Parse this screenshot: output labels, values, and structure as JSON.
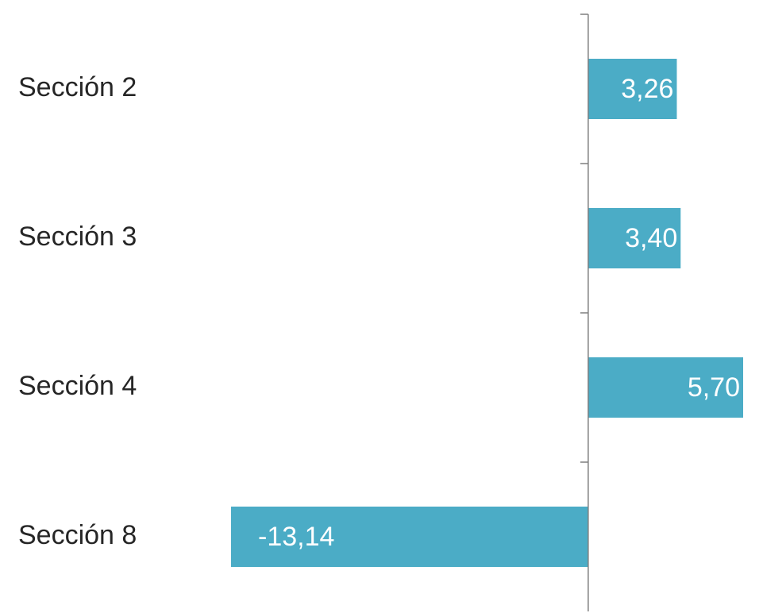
{
  "chart_data": {
    "type": "bar",
    "orientation": "horizontal",
    "categories": [
      "Sección 2",
      "Sección 3",
      "Sección 4",
      "Sección 8"
    ],
    "values": [
      3.26,
      3.4,
      5.7,
      -13.14
    ],
    "value_labels": [
      "3,26",
      "3,40",
      "5,70",
      "-13,14"
    ],
    "xlim": [
      -13.14,
      5.7
    ],
    "grid": false,
    "legend": "none",
    "colors": {
      "bar": "#4bacc6",
      "axis": "#7f7f7f",
      "label_outside": "#262626",
      "label_inside": "#ffffff"
    }
  }
}
